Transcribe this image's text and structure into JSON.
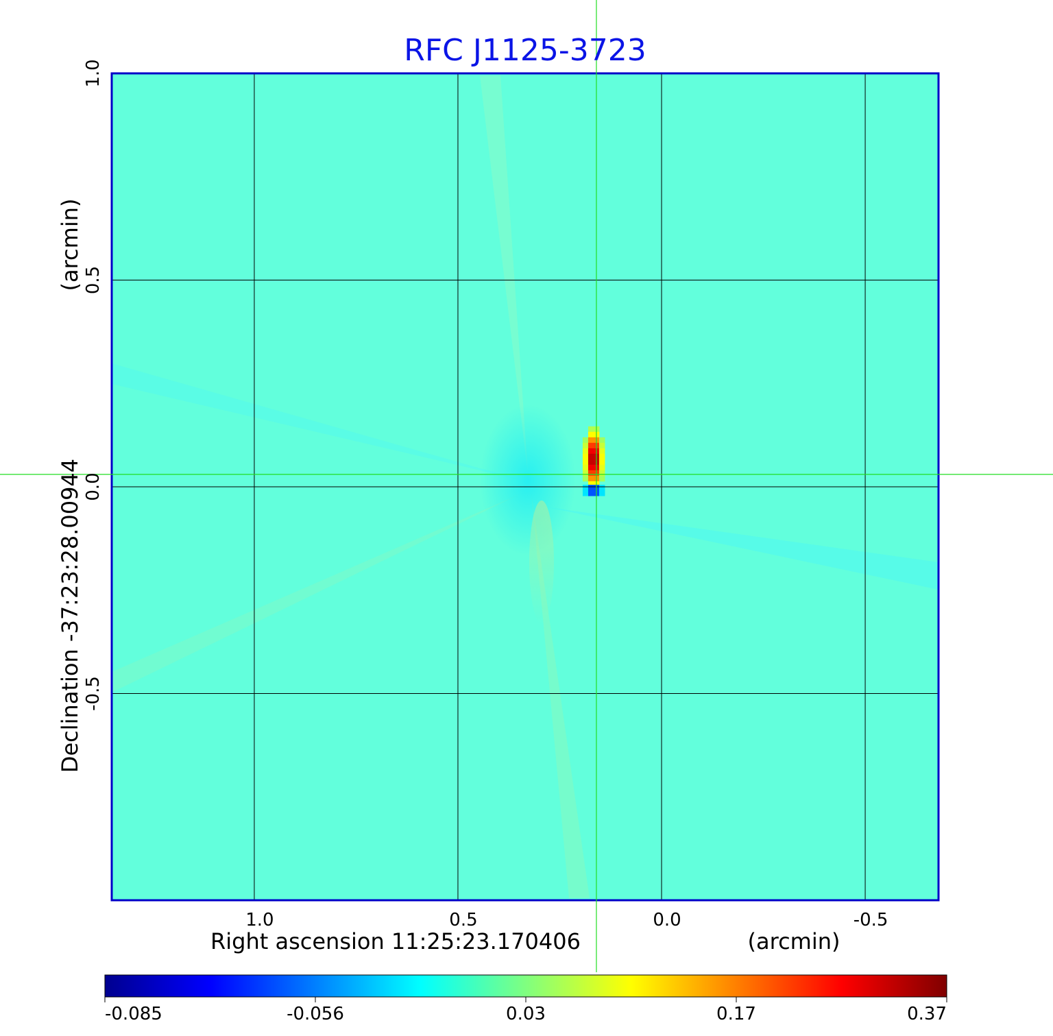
{
  "chart_data": {
    "type": "heatmap",
    "title": "RFC J1125-3723",
    "xlabel": "Right ascension  11:25:23.170406",
    "xlabel_unit": "(arcmin)",
    "ylabel": "Declination  -37:23:28.00944",
    "ylabel_unit": "(arcmin)",
    "xlim": [
      1.35,
      -0.68
    ],
    "ylim": [
      -1.0,
      1.0
    ],
    "x_ticks": [
      1.0,
      0.5,
      0.0,
      -0.5
    ],
    "x_tick_labels": [
      "1.0",
      "0.5",
      "0.0",
      "-0.5"
    ],
    "y_ticks": [
      1.0,
      0.5,
      0.0,
      -0.5
    ],
    "y_tick_labels": [
      "1.0",
      "0.5",
      "0.0",
      "-0.5"
    ],
    "grid": true,
    "crosshair": {
      "x": 0.16,
      "y": 0.03
    },
    "colorbar": {
      "colormap": "jet",
      "tick_labels": [
        "-0.085",
        "-0.056",
        "0.03",
        "0.17",
        "0.37"
      ],
      "min": -0.085,
      "max": 0.37
    },
    "source": {
      "peak_value": 0.37,
      "peak_x": 0.16,
      "peak_y": 0.06,
      "negative_value": -0.085,
      "negative_x": 0.16,
      "negative_y": -0.015
    },
    "background_value": 0.0
  },
  "colors": {
    "title": "#0a14e6",
    "frame": "#0000c8",
    "grid": "#000000",
    "crosshair": "#22dd22",
    "background": "#62ffdc"
  }
}
